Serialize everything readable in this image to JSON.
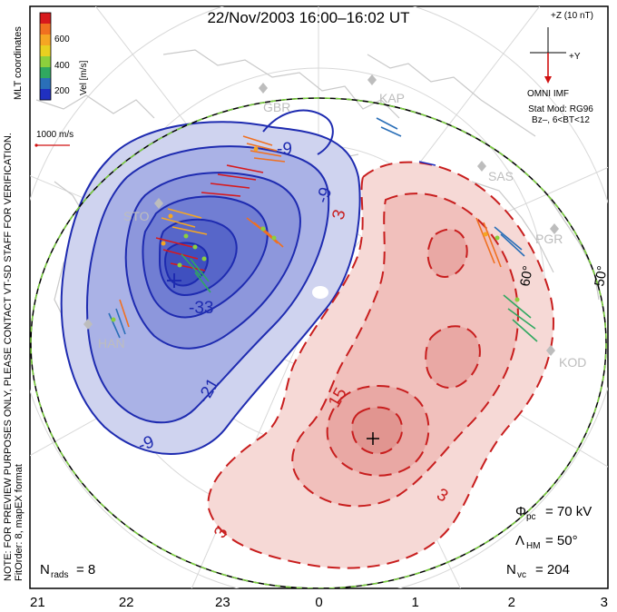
{
  "title": "22/Nov/2003 16:00–16:02 UT",
  "side_labels": {
    "coords": "MLT coordinates",
    "preview_note": "NOTE: FOR PREVIEW PURPOSES ONLY, PLEASE CONTACT VT-SD STAFF FOR VERIFICATION.",
    "fit": "FitOrder: 8, mapEX format"
  },
  "colorbar": {
    "label": "Vel [m/s]",
    "ticks": [
      "600",
      "400",
      "200"
    ],
    "colors": [
      "#d7191c",
      "#f07020",
      "#f5a623",
      "#e8d020",
      "#8cd03c",
      "#30a860",
      "#2a6fb8",
      "#2030c0"
    ]
  },
  "scale_vector": {
    "label": "1000 m/s",
    "color": "#d01010"
  },
  "imf": {
    "z_label": "+Z (10 nT)",
    "y_label": "+Y",
    "source": "OMNI IMF",
    "model_line1": "Stat Mod: RG96",
    "model_line2": "Bz–, 6<BT<12",
    "color": "#d01010"
  },
  "stations": [
    "GBR",
    "KAP",
    "SAS",
    "PGR",
    "STO",
    "HAN",
    "KOD"
  ],
  "latitude_labels": [
    "60°",
    "50°"
  ],
  "contour_labels": {
    "negative": [
      "-9",
      "-9",
      "-21",
      "-33",
      "-9"
    ],
    "positive": [
      "3",
      "15",
      "3",
      "3"
    ]
  },
  "potential_colors": {
    "negative": "#2230b8",
    "positive": "#c81e1e"
  },
  "stats": {
    "phi_pc_symbol": "Φ",
    "phi_pc_sub": "pc",
    "phi_pc_value": "= 70 kV",
    "lambda_symbol": "Λ",
    "lambda_sub": "HM",
    "lambda_value": "= 50°",
    "nvc_symbol": "N",
    "nvc_sub": "vc",
    "nvc_value": "= 204",
    "nrads_symbol": "N",
    "nrads_sub": "rads",
    "nrads_value": "= 8"
  },
  "x_axis": {
    "labels": [
      "21",
      "22",
      "23",
      "0",
      "1",
      "2",
      "3"
    ]
  }
}
